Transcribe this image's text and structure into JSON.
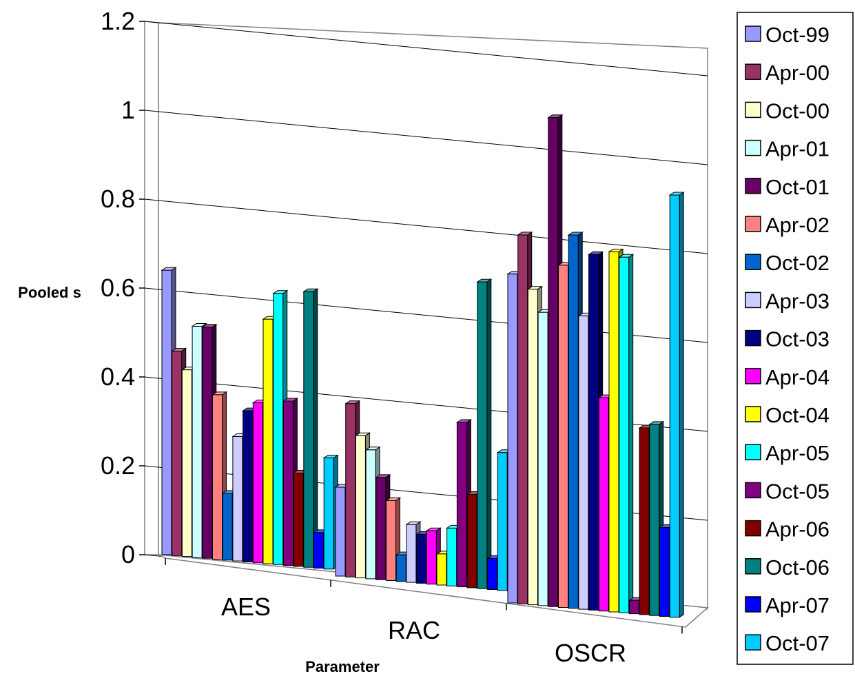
{
  "chart_data": {
    "type": "bar",
    "xlabel": "Parameter",
    "ylabel": "Pooled s",
    "ylim": [
      0,
      1.2
    ],
    "yticks": [
      "0",
      "0.2",
      "0.4",
      "0.6",
      "0.8",
      "1",
      "1.2"
    ],
    "ytick_values": [
      0,
      0.2,
      0.4,
      0.6,
      0.8,
      1.0,
      1.2
    ],
    "categories": [
      "AES",
      "RAC",
      "OSCR"
    ],
    "legend_position": "right",
    "grid": true,
    "series": [
      {
        "name": "Oct-99",
        "color": "#9999ff",
        "values": [
          0.64,
          0.2,
          0.74
        ]
      },
      {
        "name": "Apr-00",
        "color": "#993366",
        "values": [
          0.46,
          0.39,
          0.83
        ]
      },
      {
        "name": "Oct-00",
        "color": "#ffffcc",
        "values": [
          0.42,
          0.32,
          0.71
        ]
      },
      {
        "name": "Apr-01",
        "color": "#ccffff",
        "values": [
          0.52,
          0.29,
          0.66
        ]
      },
      {
        "name": "Oct-01",
        "color": "#660066",
        "values": [
          0.52,
          0.23,
          1.1
        ]
      },
      {
        "name": "Apr-02",
        "color": "#ff8080",
        "values": [
          0.37,
          0.18,
          0.77
        ]
      },
      {
        "name": "Oct-02",
        "color": "#0066cc",
        "values": [
          0.15,
          0.06,
          0.84
        ]
      },
      {
        "name": "Apr-03",
        "color": "#ccccff",
        "values": [
          0.28,
          0.13,
          0.66
        ]
      },
      {
        "name": "Oct-03",
        "color": "#000080",
        "values": [
          0.34,
          0.11,
          0.8
        ]
      },
      {
        "name": "Apr-04",
        "color": "#ff00ff",
        "values": [
          0.36,
          0.12,
          0.48
        ]
      },
      {
        "name": "Oct-04",
        "color": "#ffff00",
        "values": [
          0.55,
          0.07,
          0.81
        ]
      },
      {
        "name": "Apr-05",
        "color": "#00ffff",
        "values": [
          0.61,
          0.13,
          0.8
        ]
      },
      {
        "name": "Oct-05",
        "color": "#800080",
        "values": [
          0.37,
          0.37,
          0.03
        ]
      },
      {
        "name": "Apr-06",
        "color": "#800000",
        "values": [
          0.21,
          0.21,
          0.42
        ]
      },
      {
        "name": "Oct-06",
        "color": "#008080",
        "values": [
          0.62,
          0.69,
          0.43
        ]
      },
      {
        "name": "Apr-07",
        "color": "#0000ff",
        "values": [
          0.08,
          0.07,
          0.2
        ]
      },
      {
        "name": "Oct-07",
        "color": "#00ccff",
        "values": [
          0.25,
          0.31,
          0.95
        ]
      }
    ]
  }
}
